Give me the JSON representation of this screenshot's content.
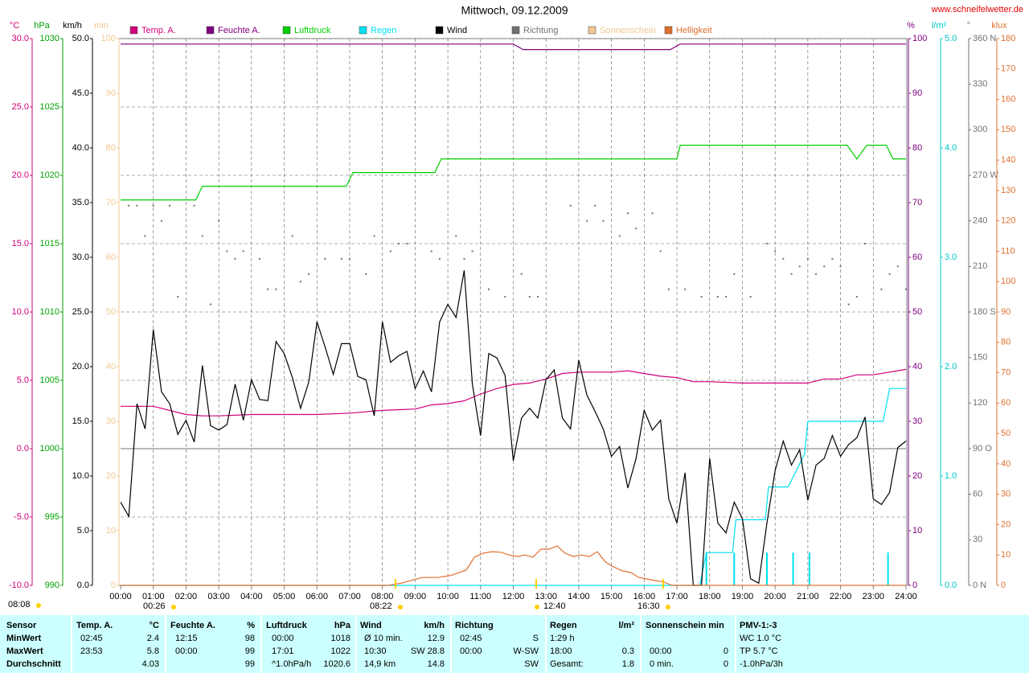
{
  "chart_data": {
    "type": "line",
    "title": "Mittwoch, 09.12.2009",
    "source": "www.schneifelwetter.de",
    "grid": true,
    "xlim": [
      0,
      24
    ],
    "xticks": [
      {
        "value": 0,
        "label": "00:00"
      },
      {
        "value": 1,
        "label": "01:00"
      },
      {
        "value": 2,
        "label": "02:00"
      },
      {
        "value": 3,
        "label": "03:00"
      },
      {
        "value": 4,
        "label": "04:00"
      },
      {
        "value": 5,
        "label": "05:00"
      },
      {
        "value": 6,
        "label": "06:00"
      },
      {
        "value": 7,
        "label": "07:00"
      },
      {
        "value": 8,
        "label": "08:00"
      },
      {
        "value": 9,
        "label": "09:00"
      },
      {
        "value": 10,
        "label": "10:00"
      },
      {
        "value": 11,
        "label": "11:00"
      },
      {
        "value": 12,
        "label": "12:00"
      },
      {
        "value": 13,
        "label": "13:00"
      },
      {
        "value": 14,
        "label": "14:00"
      },
      {
        "value": 15,
        "label": "15:00"
      },
      {
        "value": 16,
        "label": "16:00"
      },
      {
        "value": 17,
        "label": "17:00"
      },
      {
        "value": 18,
        "label": "18:00"
      },
      {
        "value": 19,
        "label": "19:00"
      },
      {
        "value": 20,
        "label": "20:00"
      },
      {
        "value": 21,
        "label": "21:00"
      },
      {
        "value": 22,
        "label": "22:00"
      },
      {
        "value": 23,
        "label": "23:00"
      },
      {
        "value": 24,
        "label": "24:00"
      }
    ],
    "axes": {
      "temp": {
        "unit": "°C",
        "color": "#d0007a",
        "lim": [
          -10,
          30
        ],
        "ticks": [
          {
            "value": -10,
            "label": "-10.0"
          },
          {
            "value": -5,
            "label": "-5.0"
          },
          {
            "value": 0,
            "label": "0.0"
          },
          {
            "value": 5,
            "label": "5.0"
          },
          {
            "value": 10,
            "label": "10.0"
          },
          {
            "value": 15,
            "label": "15.0"
          },
          {
            "value": 20,
            "label": "20.0"
          },
          {
            "value": 25,
            "label": "25.0"
          },
          {
            "value": 30,
            "label": "30.0"
          }
        ]
      },
      "pressure": {
        "unit": "hPa",
        "color": "#00a000",
        "lim": [
          990,
          1030
        ],
        "ticks": [
          990,
          995,
          1000,
          1005,
          1010,
          1015,
          1020,
          1025,
          1030
        ]
      },
      "wind": {
        "unit": "km/h",
        "color": "#000000",
        "lim": [
          0,
          50
        ],
        "ticks": [
          {
            "value": 0,
            "label": "0.0"
          },
          {
            "value": 5,
            "label": "5.0"
          },
          {
            "value": 10,
            "label": "10.0"
          },
          {
            "value": 15,
            "label": "15.0"
          },
          {
            "value": 20,
            "label": "20.0"
          },
          {
            "value": 25,
            "label": "25.0"
          },
          {
            "value": 30,
            "label": "30.0"
          },
          {
            "value": 35,
            "label": "35.0"
          },
          {
            "value": 40,
            "label": "40.0"
          },
          {
            "value": 45,
            "label": "45.0"
          },
          {
            "value": 50,
            "label": "50.0"
          }
        ]
      },
      "sun": {
        "unit": "min",
        "color": "#f0c890",
        "lim": [
          0,
          100
        ],
        "ticks": [
          0,
          10,
          20,
          30,
          40,
          50,
          60,
          70,
          80,
          90,
          100
        ]
      },
      "hum": {
        "unit": "%",
        "color": "#800080",
        "lim": [
          0,
          100
        ],
        "ticks": [
          0,
          10,
          20,
          30,
          40,
          50,
          60,
          70,
          80,
          90,
          100
        ]
      },
      "rain": {
        "unit": "l/m²",
        "color": "#00c8c8",
        "lim": [
          0,
          5
        ],
        "ticks": [
          {
            "value": 0,
            "label": "0.0"
          },
          {
            "value": 1,
            "label": "1.0"
          },
          {
            "value": 2,
            "label": "2.0"
          },
          {
            "value": 3,
            "label": "3.0"
          },
          {
            "value": 4,
            "label": "4.0"
          },
          {
            "value": 5,
            "label": "5.0"
          }
        ]
      },
      "dir": {
        "unit": "°",
        "color": "#707070",
        "lim": [
          0,
          360
        ],
        "ticks": [
          {
            "value": 0,
            "label": "0 N"
          },
          30,
          60,
          {
            "value": 90,
            "label": "90 O"
          },
          120,
          150,
          {
            "value": 180,
            "label": "180 S"
          },
          210,
          240,
          {
            "value": 270,
            "label": "270 W"
          },
          300,
          330,
          {
            "value": 360,
            "label": "360 N"
          }
        ]
      },
      "lux": {
        "unit": "klux",
        "color": "#e07030",
        "lim": [
          0,
          180
        ],
        "ticks": [
          0,
          10,
          20,
          30,
          40,
          50,
          60,
          70,
          80,
          90,
          100,
          110,
          120,
          130,
          140,
          150,
          160,
          170,
          180
        ]
      }
    },
    "series": [
      {
        "name": "Temp. A.",
        "color": "#d0007a",
        "axis": "temp",
        "x": [
          0,
          1,
          1.5,
          2,
          2.5,
          3,
          4,
          5,
          6,
          7,
          8,
          9,
          9.5,
          10,
          10.5,
          11,
          11.5,
          12,
          12.5,
          13,
          13.5,
          14,
          15,
          15.5,
          16,
          16.5,
          17,
          17.5,
          18,
          19,
          20,
          21,
          21.5,
          22,
          22.5,
          23,
          24
        ],
        "values": [
          3.1,
          3.1,
          2.8,
          2.5,
          2.4,
          2.4,
          2.5,
          2.5,
          2.5,
          2.6,
          2.8,
          2.9,
          3.2,
          3.3,
          3.5,
          4.0,
          4.4,
          4.7,
          4.8,
          5.1,
          5.5,
          5.6,
          5.6,
          5.7,
          5.5,
          5.3,
          5.2,
          4.9,
          4.9,
          4.8,
          4.8,
          4.8,
          5.1,
          5.1,
          5.4,
          5.4,
          5.8
        ]
      },
      {
        "name": "Feuchte A.",
        "color": "#800080",
        "axis": "hum",
        "x": [
          0,
          12,
          12.3,
          16.8,
          17.1,
          24
        ],
        "values": [
          99,
          99,
          98,
          98,
          99,
          99
        ]
      },
      {
        "name": "Luftdruck",
        "color": "#00d000",
        "axis": "pressure",
        "x": [
          0,
          2.3,
          2.5,
          6.9,
          7.1,
          9.6,
          9.8,
          17,
          17.1,
          22.2,
          22.5,
          22.8,
          23.4,
          23.6,
          24
        ],
        "values": [
          1018.2,
          1018.2,
          1019.2,
          1019.2,
          1020.2,
          1020.2,
          1021.2,
          1021.2,
          1022.2,
          1022.2,
          1021.2,
          1022.2,
          1022.2,
          1021.2,
          1021.2
        ]
      },
      {
        "name": "Regen",
        "color": "#00e0f0",
        "axis": "rain",
        "x": [
          0,
          17.7,
          17.9,
          18.7,
          18.8,
          19.7,
          19.8,
          20.4,
          20.9,
          21,
          23.3,
          23.5,
          24
        ],
        "values": [
          0,
          0,
          0.3,
          0.3,
          0.6,
          0.6,
          0.9,
          0.9,
          1.2,
          1.5,
          1.5,
          1.8,
          1.8
        ],
        "bar_x": [
          17.9,
          18.75,
          19.75,
          20.55,
          21.05,
          23.45
        ],
        "bar_values": [
          0.3,
          0.3,
          0.3,
          0.3,
          0.3,
          0.3
        ]
      },
      {
        "name": "Wind",
        "color": "#000000",
        "axis": "wind",
        "x": [
          0,
          0.25,
          0.5,
          0.75,
          1,
          1.25,
          1.5,
          1.75,
          2,
          2.25,
          2.5,
          2.75,
          3,
          3.25,
          3.5,
          3.75,
          4,
          4.25,
          4.5,
          4.75,
          5,
          5.25,
          5.5,
          5.75,
          6,
          6.25,
          6.5,
          6.75,
          7,
          7.25,
          7.5,
          7.75,
          8,
          8.25,
          8.5,
          8.75,
          9,
          9.25,
          9.5,
          9.75,
          10,
          10.25,
          10.5,
          10.75,
          11,
          11.25,
          11.5,
          11.75,
          12,
          12.25,
          12.5,
          12.75,
          13,
          13.25,
          13.5,
          13.75,
          14,
          14.25,
          14.5,
          14.75,
          15,
          15.25,
          15.5,
          15.75,
          16,
          16.25,
          16.5,
          16.75,
          17,
          17.25,
          17.5,
          17.75,
          18,
          18.25,
          18.5,
          18.75,
          19,
          19.25,
          19.5,
          19.75,
          20,
          20.25,
          20.5,
          20.75,
          21,
          21.25,
          21.5,
          21.75,
          22,
          22.25,
          22.5,
          22.75,
          23,
          23.25,
          23.5,
          23.75,
          24
        ],
        "values": [
          7.6,
          6.3,
          16.6,
          14.3,
          23.4,
          17.7,
          16.6,
          13.8,
          15.1,
          13.1,
          20.1,
          14.6,
          14.2,
          14.7,
          18.4,
          15.1,
          18.8,
          17.0,
          16.9,
          22.3,
          21.2,
          19.0,
          16.2,
          18.6,
          24.1,
          21.8,
          19.3,
          22.1,
          22.1,
          19.1,
          18.8,
          15.5,
          24.1,
          20.4,
          21.0,
          21.4,
          18.0,
          19.6,
          17.7,
          24.1,
          25.7,
          24.5,
          28.8,
          18.4,
          13.7,
          21.2,
          20.8,
          19.2,
          11.4,
          15.3,
          16.2,
          15.3,
          18.8,
          19.7,
          15.3,
          14.3,
          20.6,
          17.4,
          15.9,
          14.3,
          11.8,
          12.7,
          8.9,
          11.6,
          16.0,
          14.2,
          15.1,
          7.9,
          5.7,
          10.3,
          0,
          0,
          11.6,
          5.7,
          4.8,
          7.6,
          6.1,
          0.6,
          0.2,
          5.7,
          10.5,
          13.2,
          11.0,
          12.4,
          7.8,
          11.0,
          11.6,
          13.7,
          11.8,
          12.9,
          13.5,
          15.4,
          7.9,
          7.4,
          8.5,
          12.6,
          13.2
        ]
      },
      {
        "name": "Richtung",
        "color": "#707070",
        "axis": "dir",
        "style": "dots",
        "x": [
          0.25,
          0.5,
          0.75,
          1,
          1.25,
          1.5,
          1.75,
          2.25,
          2.5,
          2.75,
          3,
          3.25,
          3.5,
          3.75,
          4.25,
          4.5,
          4.75,
          5.25,
          5.5,
          5.75,
          6.25,
          6.75,
          7,
          7.5,
          7.75,
          8.25,
          8.5,
          8.75,
          9.5,
          9.75,
          10.25,
          10.5,
          10.75,
          11.25,
          11.75,
          12.25,
          12.5,
          12.75,
          13.75,
          14.25,
          14.5,
          14.75,
          15.25,
          15.5,
          15.75,
          16.25,
          16.5,
          16.75,
          17.25,
          17.75,
          18.25,
          18.5,
          18.75,
          19.25,
          19.75,
          20,
          20.25,
          20.5,
          20.75,
          21,
          21.25,
          21.5,
          21.75,
          22,
          22.25,
          22.5,
          22.75,
          23.25,
          23.5,
          23.75,
          24
        ],
        "values": [
          250,
          250,
          230,
          250,
          240,
          250,
          190,
          250,
          230,
          185,
          240,
          220,
          215,
          220,
          215,
          195,
          195,
          230,
          200,
          205,
          215,
          215,
          215,
          205,
          230,
          220,
          225,
          225,
          220,
          215,
          230,
          215,
          220,
          195,
          190,
          205,
          190,
          190,
          250,
          240,
          250,
          240,
          230,
          245,
          235,
          245,
          220,
          195,
          195,
          190,
          190,
          190,
          205,
          190,
          225,
          220,
          215,
          205,
          210,
          215,
          205,
          210,
          215,
          210,
          185,
          190,
          225,
          195,
          205,
          210,
          195
        ]
      },
      {
        "name": "Sonnenschein",
        "color": "#f0c890",
        "axis": "sun"
      },
      {
        "name": "Helligkeit",
        "color": "#e07030",
        "axis": "lux",
        "x": [
          0,
          8.2,
          8.6,
          9.21,
          9.7,
          10.07,
          10.56,
          10.81,
          11.08,
          11.35,
          11.62,
          11.87,
          12.16,
          12.35,
          12.6,
          12.85,
          13.09,
          13.34,
          13.58,
          13.83,
          14.07,
          14.32,
          14.57,
          14.81,
          15.06,
          15.33,
          15.6,
          15.84,
          16.09,
          16.33,
          16.6,
          16.85,
          24
        ],
        "values": [
          0,
          0,
          0.8,
          2.6,
          2.6,
          3.2,
          5,
          9.3,
          10.6,
          11.1,
          10.9,
          10,
          9.5,
          10,
          9.3,
          11.9,
          11.9,
          13,
          10.6,
          9.5,
          10,
          9.5,
          11.1,
          7.7,
          6.1,
          4.8,
          4.2,
          2.6,
          2.1,
          1.6,
          1.1,
          0,
          0
        ]
      }
    ],
    "annotations": [
      {
        "text": "08:08"
      },
      {
        "text": "00:26"
      },
      {
        "text": "08:22"
      },
      {
        "text": "12:40"
      },
      {
        "text": "16:30"
      }
    ]
  },
  "table": {
    "header": [
      "Sensor",
      "Temp. A.",
      "°C",
      "Feuchte A.",
      "%",
      "Luftdruck",
      "hPa",
      "Wind",
      "km/h",
      "Richtung",
      "Regen",
      "l/m²",
      "Sonnenschein min",
      "PMV-1:-3"
    ],
    "rows": [
      {
        "label": "MinWert",
        "cells": [
          "02:45",
          "2.4",
          "12:15",
          "98",
          "00:00",
          "1018",
          "Ø 10 min.",
          "12.9",
          "02:45",
          "S",
          "1:29 h",
          null,
          null,
          null,
          "WC 1.0 °C"
        ]
      },
      {
        "label": "MaxWert",
        "cells": [
          "23:53",
          "5.8",
          "00:00",
          "99",
          "17:01",
          "1022",
          "10:30",
          "SW 28.8",
          "00:00",
          "W-SW",
          "18:00",
          "0.3",
          "00:00",
          "0",
          "TP 5.7 °C"
        ]
      },
      {
        "label": "Durchschnitt",
        "cells": [
          null,
          "4.03",
          null,
          "99",
          "^1.0hPa/h",
          "1020.6",
          "14,9 km",
          "14.8",
          null,
          "SW",
          "Gesamt:",
          "1.8",
          "0 min.",
          "0",
          "-1.0hPa/3h"
        ]
      }
    ]
  }
}
